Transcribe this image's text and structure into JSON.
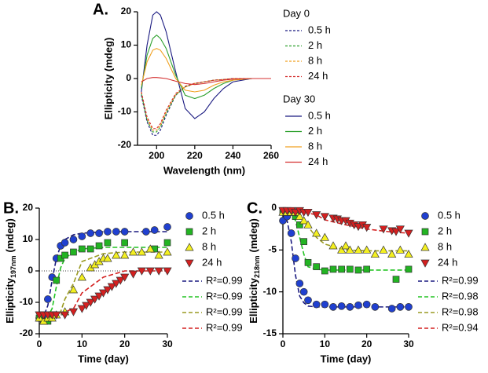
{
  "chart_data": [
    {
      "type": "line",
      "panel_label": "A.",
      "xlabel": "Wavelength (nm)",
      "ylabel": "Ellipticity (mdeg)",
      "xlim": [
        190,
        260
      ],
      "xticks": [
        200,
        220,
        240,
        260
      ],
      "ylim": [
        -20,
        20
      ],
      "yticks": [
        -20,
        -10,
        0,
        10,
        20
      ],
      "x": [
        192,
        195,
        198,
        200,
        202,
        205,
        210,
        215,
        220,
        225,
        230,
        235,
        240,
        250,
        260
      ],
      "series": [
        {
          "name": "0.5 h",
          "group": "Day 0",
          "line_style": "dashed",
          "color": "#1a1a80",
          "values": [
            -5,
            -13,
            -17,
            -17,
            -15.5,
            -11,
            -5,
            -2.5,
            -1.5,
            -1,
            -0.5,
            -0.3,
            0,
            0,
            0
          ]
        },
        {
          "name": "2 h",
          "group": "Day 0",
          "line_style": "dashed",
          "color": "#2ca02c",
          "values": [
            -4.5,
            -12.5,
            -16,
            -16,
            -14.5,
            -10.5,
            -5,
            -2.5,
            -1.5,
            -1,
            -0.5,
            -0.3,
            0,
            0,
            0
          ]
        },
        {
          "name": "8 h",
          "group": "Day 0",
          "line_style": "dashed",
          "color": "#f0a020",
          "values": [
            -4,
            -12,
            -15.5,
            -15.5,
            -14,
            -10,
            -4.8,
            -2.5,
            -1.5,
            -1,
            -0.5,
            -0.3,
            0,
            0,
            0
          ]
        },
        {
          "name": "24 h",
          "group": "Day 0",
          "line_style": "dashed",
          "color": "#d43030",
          "values": [
            -4,
            -11.5,
            -15,
            -15,
            -13.5,
            -9.5,
            -4.5,
            -2.3,
            -1.4,
            -1,
            -0.5,
            -0.3,
            0,
            0,
            0
          ]
        },
        {
          "name": "0.5 h",
          "group": "Day 30",
          "line_style": "solid",
          "color": "#1a1a80",
          "values": [
            -4,
            10,
            19,
            20,
            19,
            14,
            2,
            -9,
            -12,
            -10,
            -6,
            -3,
            -1,
            0,
            0
          ]
        },
        {
          "name": "2 h",
          "group": "Day 30",
          "line_style": "solid",
          "color": "#2ca02c",
          "values": [
            -3,
            7,
            12,
            13,
            12,
            9,
            1,
            -5,
            -6,
            -5,
            -3,
            -1.5,
            -0.5,
            0,
            0
          ]
        },
        {
          "name": "8 h",
          "group": "Day 30",
          "line_style": "solid",
          "color": "#f0a020",
          "values": [
            -2,
            5,
            8.5,
            9,
            8.5,
            6,
            0,
            -3.5,
            -4,
            -3.5,
            -2,
            -1,
            -0.5,
            0,
            0
          ]
        },
        {
          "name": "24 h",
          "group": "Day 30",
          "line_style": "solid",
          "color": "#d43030",
          "values": [
            -1,
            0,
            0.3,
            0.3,
            0.2,
            0,
            -0.8,
            -1.5,
            -1.8,
            -1.5,
            -1,
            -0.5,
            -0.2,
            0,
            0
          ]
        }
      ]
    },
    {
      "type": "scatter",
      "panel_label": "B.",
      "xlabel": "Time (day)",
      "ylabel": {
        "text": "Ellipticity",
        "sub": "197nm",
        "unit": "(mdeg)"
      },
      "xlim": [
        0,
        30
      ],
      "xticks": [
        0,
        10,
        20,
        30
      ],
      "ylim": [
        -20,
        20
      ],
      "yticks": [
        -20,
        -10,
        0,
        10,
        20
      ],
      "zero_line": true,
      "series": [
        {
          "name": "0.5 h",
          "marker": "circle",
          "color": "#2040d0",
          "x": [
            0,
            1,
            2,
            3,
            4,
            5,
            6,
            8,
            10,
            12,
            14,
            16,
            18,
            20,
            25,
            27,
            30
          ],
          "values": [
            -15,
            -15,
            -9,
            -2,
            4,
            8,
            9,
            10,
            11,
            12,
            12,
            12.5,
            12.5,
            12.5,
            12.5,
            13,
            14
          ],
          "fit": {
            "name": "R²=0.99",
            "color": "#1a1a80",
            "x": [
              0,
              1,
              2,
              3,
              4,
              5,
              6,
              8,
              10,
              15,
              20,
              25,
              30
            ],
            "values": [
              -15,
              -14.5,
              -11,
              -3,
              4,
              8,
              10,
              11.5,
              12,
              12.5,
              12.5,
              12.5,
              12.5
            ]
          }
        },
        {
          "name": "2 h",
          "marker": "square",
          "color": "#22b422",
          "x": [
            0,
            1,
            2,
            3,
            4,
            5,
            6,
            8,
            10,
            12,
            14,
            16,
            20,
            27,
            30
          ],
          "values": [
            -15,
            -16,
            -16,
            -14,
            -3,
            4,
            5,
            6,
            7,
            7,
            8,
            9,
            9,
            7,
            9
          ],
          "fit": {
            "name": "R²=0.99",
            "color": "#22c422",
            "x": [
              0,
              1,
              2,
              3,
              4,
              5,
              6,
              8,
              10,
              15,
              20,
              25,
              30
            ],
            "values": [
              -15,
              -15,
              -14.5,
              -12,
              -5,
              1,
              4,
              6,
              7,
              7.5,
              7.5,
              7.5,
              7.5
            ]
          }
        },
        {
          "name": "8 h",
          "marker": "triangle-up",
          "color": "#f4f020",
          "x": [
            0,
            1,
            2,
            3,
            4,
            6,
            8,
            10,
            12,
            13,
            14,
            15,
            16,
            18,
            20,
            22,
            24,
            26,
            28,
            30
          ],
          "values": [
            -15,
            -16,
            -15,
            -15,
            -14,
            -13,
            -6,
            -2,
            1,
            2,
            3,
            4,
            4,
            5,
            5,
            6,
            6,
            7,
            5,
            6
          ],
          "fit": {
            "name": "R²=0.99",
            "color": "#9a9a20",
            "x": [
              0,
              1,
              2,
              3,
              4,
              5,
              6,
              8,
              10,
              15,
              20,
              25,
              30
            ],
            "values": [
              -15,
              -15,
              -15,
              -15,
              -14.5,
              -13,
              -9,
              -4,
              3,
              5.5,
              6,
              6,
              6
            ]
          }
        },
        {
          "name": "24 h",
          "marker": "triangle-down",
          "color": "#d42020",
          "x": [
            0,
            1,
            2,
            3,
            4,
            6,
            8,
            10,
            11,
            12,
            13,
            14,
            15,
            16,
            17,
            18,
            19,
            20,
            22,
            24,
            26,
            28,
            30
          ],
          "values": [
            -14,
            -14,
            -14,
            -14,
            -14,
            -14,
            -13,
            -12,
            -11,
            -10,
            -9,
            -8,
            -7,
            -6,
            -5,
            -4,
            -3,
            -2,
            -1,
            0,
            0,
            0,
            0
          ],
          "fit": {
            "name": "R²=0.99",
            "color": "#d42020",
            "x": [
              0,
              1,
              2,
              3,
              4,
              5,
              6,
              8,
              10,
              15,
              20,
              25,
              30
            ],
            "values": [
              -13.5,
              -13.5,
              -13.5,
              -13.5,
              -13.5,
              -13.5,
              -13,
              -12,
              -7,
              -2,
              0,
              0,
              0
            ]
          }
        }
      ]
    },
    {
      "type": "scatter",
      "panel_label": "C.",
      "xlabel": "Time (day)",
      "ylabel": {
        "text": "Ellipticity",
        "sub": "218nm",
        "unit": "(mdeg)"
      },
      "xlim": [
        0,
        30
      ],
      "xticks": [
        0,
        10,
        20,
        30
      ],
      "ylim": [
        -15,
        0
      ],
      "yticks": [
        -15,
        -10,
        -5,
        0
      ],
      "series": [
        {
          "name": "0.5 h",
          "marker": "circle",
          "color": "#2040d0",
          "x": [
            0,
            1,
            2,
            3,
            4,
            5,
            6,
            8,
            10,
            12,
            14,
            16,
            18,
            20,
            22,
            26,
            28,
            30
          ],
          "values": [
            -1.5,
            -1,
            -3,
            -6,
            -9,
            -10,
            -11,
            -11.5,
            -11.5,
            -11.8,
            -11.7,
            -11.8,
            -11.6,
            -11.5,
            -11.8,
            -12,
            -11.8,
            -11.8
          ],
          "fit": {
            "name": "R²=0.99",
            "color": "#1a1a80",
            "x": [
              0,
              1,
              2,
              3,
              4,
              5,
              6,
              8,
              10,
              15,
              20,
              25,
              30
            ],
            "values": [
              -0.5,
              -1.5,
              -4,
              -8,
              -10.5,
              -11.3,
              -11.7,
              -11.8,
              -11.8,
              -11.8,
              -11.8,
              -11.8,
              -11.8
            ]
          }
        },
        {
          "name": "2 h",
          "marker": "square",
          "color": "#22b422",
          "x": [
            0,
            1,
            2,
            3,
            4,
            5,
            6,
            8,
            10,
            12,
            14,
            16,
            18,
            20,
            27,
            30
          ],
          "values": [
            -0.3,
            -0.5,
            -0.5,
            -1,
            -2,
            -4,
            -6.5,
            -7,
            -7.5,
            -7.3,
            -7.3,
            -7.3,
            -7.4,
            -7.3,
            -8.5,
            -7.3
          ],
          "fit": {
            "name": "R²=0.98",
            "color": "#22c422",
            "x": [
              0,
              1,
              2,
              3,
              4,
              5,
              6,
              8,
              10,
              15,
              20,
              25,
              30
            ],
            "values": [
              -0.3,
              -0.3,
              -0.5,
              -1.5,
              -3.5,
              -5.5,
              -7,
              -7.3,
              -7.4,
              -7.4,
              -7.4,
              -7.4,
              -7.4
            ]
          }
        },
        {
          "name": "8 h",
          "marker": "triangle-up",
          "color": "#f4f020",
          "x": [
            0,
            1,
            2,
            3,
            4,
            5,
            6,
            8,
            10,
            12,
            14,
            15,
            16,
            18,
            20,
            22,
            24,
            26,
            28,
            30
          ],
          "values": [
            -0.5,
            -0.5,
            -0.5,
            -0.5,
            -1,
            -1.5,
            -2,
            -3,
            -3.5,
            -4.5,
            -5,
            -4.5,
            -5,
            -5,
            -5,
            -5.5,
            -5,
            -5.5,
            -5,
            -5.5
          ],
          "fit": {
            "name": "R²=0.98",
            "color": "#9a9a20",
            "x": [
              0,
              1,
              2,
              3,
              4,
              5,
              6,
              8,
              10,
              15,
              20,
              25,
              30
            ],
            "values": [
              -0.5,
              -0.5,
              -0.5,
              -0.6,
              -0.9,
              -1.5,
              -2.2,
              -3.5,
              -4.3,
              -5,
              -5.1,
              -5.1,
              -5.1
            ]
          }
        },
        {
          "name": "24 h",
          "marker": "triangle-down",
          "color": "#d42020",
          "x": [
            0,
            1,
            2,
            3,
            4,
            5,
            6,
            8,
            10,
            12,
            13,
            14,
            15,
            16,
            17,
            18,
            19,
            20,
            24,
            26,
            27,
            28,
            30
          ],
          "values": [
            -0.3,
            -0.3,
            -0.3,
            -0.5,
            -0.3,
            -0.5,
            -0.5,
            -0.8,
            -1,
            -1.2,
            -1.3,
            -1.5,
            -1.5,
            -1.8,
            -2,
            -2.2,
            -2,
            -2.3,
            -2.5,
            -2.7,
            -2.8,
            -2.5,
            -3
          ],
          "fit": {
            "name": "R²=0.94",
            "color": "#d42020",
            "x": [
              0,
              1,
              2,
              3,
              4,
              5,
              6,
              8,
              10,
              15,
              20,
              25,
              30
            ],
            "values": [
              -0.3,
              -0.3,
              -0.35,
              -0.4,
              -0.45,
              -0.5,
              -0.6,
              -0.8,
              -1.4,
              -2,
              -2.5,
              -2.8,
              -3
            ]
          }
        }
      ]
    }
  ]
}
